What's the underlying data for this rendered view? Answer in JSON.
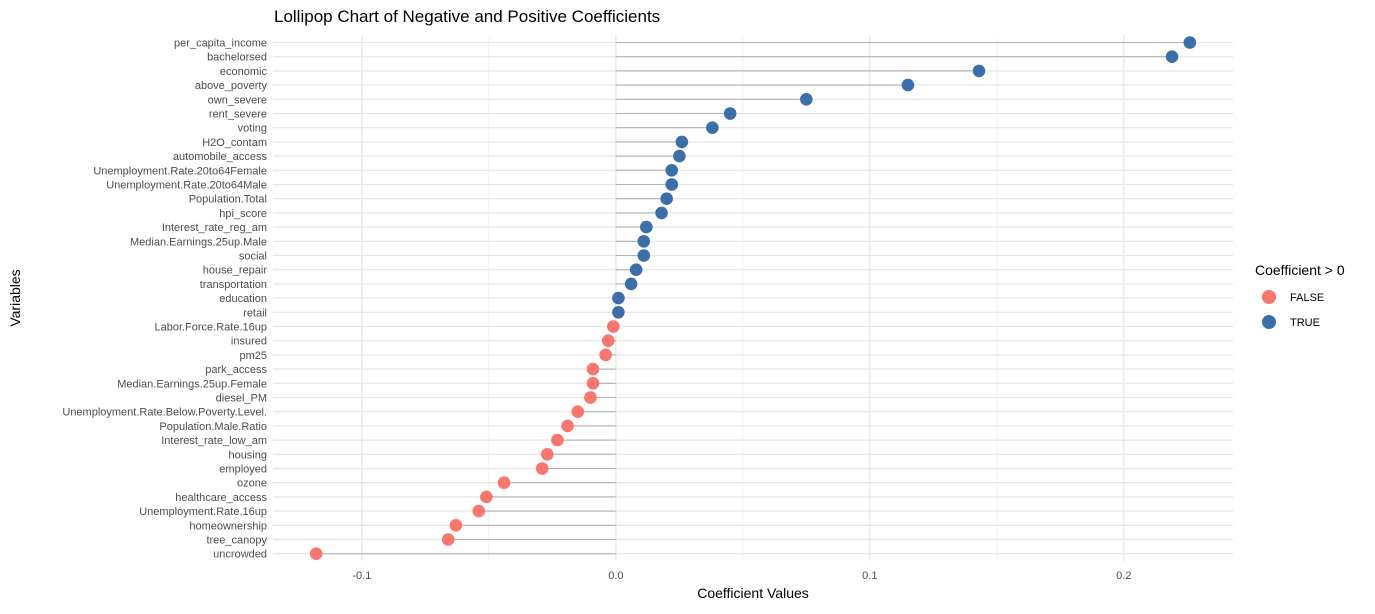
{
  "chart_data": {
    "type": "lollipop",
    "title": "Lollipop Chart of Negative and Positive Coefficients",
    "xlabel": "Coefficient Values",
    "ylabel": "Variables",
    "xlim": [
      -0.135,
      0.243
    ],
    "x_ticks": [
      -0.1,
      0.0,
      0.1,
      0.2
    ],
    "x_tick_labels": [
      "-0.1",
      "0.0",
      "0.1",
      "0.2"
    ],
    "grid": true,
    "legend": {
      "title": "Coefficient > 0",
      "placement": "right",
      "entries": [
        {
          "label": "FALSE",
          "color": "#F8766D"
        },
        {
          "label": "TRUE",
          "color": "#3B6FAA"
        }
      ]
    },
    "colors": {
      "positive": "#3B6FAA",
      "negative": "#F8766D",
      "stem": "#b3b3b3",
      "grid_major": "#e5e5e5",
      "grid_minor": "#f2f2f2"
    },
    "categories": [
      "per_capita_income",
      "bachelorsed",
      "economic",
      "above_poverty",
      "own_severe",
      "rent_severe",
      "voting",
      "H2O_contam",
      "automobile_access",
      "Unemployment.Rate.20to64Female",
      "Unemployment.Rate.20to64Male",
      "Population.Total",
      "hpi_score",
      "Interest_rate_reg_am",
      "Median.Earnings.25up.Male",
      "social",
      "house_repair",
      "transportation",
      "education",
      "retail",
      "Labor.Force.Rate.16up",
      "insured",
      "pm25",
      "park_access",
      "Median.Earnings.25up.Female",
      "diesel_PM",
      "Unemployment.Rate.Below.Poverty.Level.",
      "Population.Male.Ratio",
      "Interest_rate_low_am",
      "housing",
      "employed",
      "ozone",
      "healthcare_access",
      "Unemployment.Rate.16up",
      "homeownership",
      "tree_canopy",
      "uncrowded"
    ],
    "values": [
      0.226,
      0.219,
      0.143,
      0.115,
      0.075,
      0.045,
      0.038,
      0.026,
      0.025,
      0.022,
      0.022,
      0.02,
      0.018,
      0.012,
      0.011,
      0.011,
      0.008,
      0.006,
      0.001,
      0.001,
      -0.001,
      -0.003,
      -0.004,
      -0.009,
      -0.009,
      -0.01,
      -0.015,
      -0.019,
      -0.023,
      -0.027,
      -0.029,
      -0.044,
      -0.051,
      -0.054,
      -0.063,
      -0.066,
      -0.118
    ]
  }
}
